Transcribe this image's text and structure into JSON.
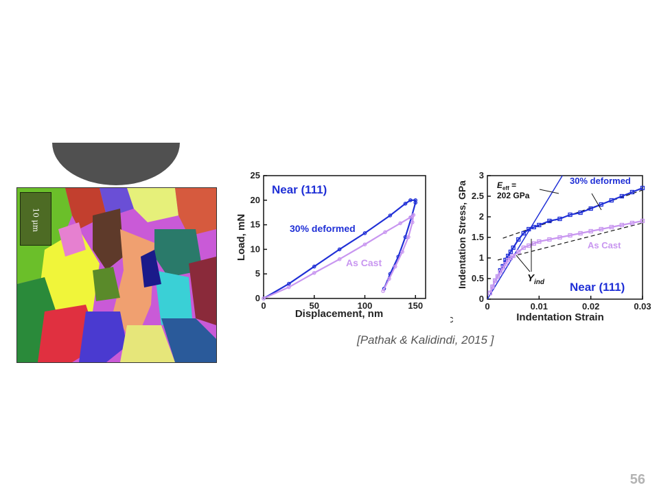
{
  "slide": {
    "citation": "[Pathak & Kalidindi, 2015 ]",
    "page_number": "56"
  },
  "micrograph": {
    "scale_bar_text": "10 μm"
  },
  "colors": {
    "deformed": "#1f2fd6",
    "as_cast": "#c896f0",
    "fit_line": "#111111",
    "modulus_line": "#1f2fd6"
  },
  "chart_data": [
    {
      "type": "line",
      "annotation": "Near (111)",
      "xlabel": "Displacement, nm",
      "ylabel": "Load, mN",
      "xlim": [
        0,
        160
      ],
      "ylim": [
        0,
        25
      ],
      "xticks": [
        0,
        50,
        100,
        150
      ],
      "yticks": [
        0,
        5,
        10,
        15,
        20,
        25
      ],
      "grid": false,
      "series": [
        {
          "name": "30% deformed",
          "color": "#1f2fd6",
          "x": [
            0,
            25,
            50,
            75,
            100,
            125,
            140,
            145,
            150,
            150,
            146,
            140,
            133,
            125,
            119
          ],
          "y": [
            0,
            3.0,
            6.5,
            10.0,
            13.3,
            16.9,
            19.3,
            20.0,
            20.0,
            19.5,
            16.5,
            12.5,
            8.5,
            5.0,
            2.0
          ]
        },
        {
          "name": "As Cast",
          "color": "#c896f0",
          "x": [
            0,
            25,
            50,
            75,
            100,
            120,
            135,
            145,
            148,
            147,
            143,
            137,
            130,
            124,
            118
          ],
          "y": [
            0,
            2.3,
            5.2,
            8.0,
            11.0,
            13.5,
            15.3,
            16.5,
            17.0,
            15.5,
            12.5,
            9.5,
            6.5,
            4.0,
            1.5
          ]
        }
      ]
    },
    {
      "type": "scatter",
      "annotation": "Near (111)",
      "panel_label": "(c",
      "xlabel": "Indentation Strain",
      "ylabel": "Indentation Stress, GPa",
      "xlim": [
        0,
        0.03
      ],
      "ylim": [
        0,
        3
      ],
      "xticks": [
        0,
        0.01,
        0.02,
        0.03
      ],
      "xtick_labels": [
        "0",
        "0.01",
        "0.02",
        "0.03"
      ],
      "yticks": [
        0,
        0.5,
        1,
        1.5,
        2,
        2.5,
        3
      ],
      "ytick_labels": [
        "0",
        "0.5",
        "1",
        "1.5",
        "2",
        "2.5",
        "3"
      ],
      "grid": false,
      "modulus_label": "E",
      "modulus_subscript": "eff",
      "modulus_label_suffix": " =",
      "modulus_value": "202 GPa",
      "yield_label": "Y",
      "yield_subscript": "ind",
      "series": [
        {
          "name": "30% deformed",
          "color": "#1f2fd6",
          "x": [
            0.0005,
            0.001,
            0.0015,
            0.002,
            0.0025,
            0.003,
            0.0035,
            0.004,
            0.0045,
            0.005,
            0.006,
            0.007,
            0.008,
            0.009,
            0.01,
            0.012,
            0.014,
            0.016,
            0.018,
            0.02,
            0.022,
            0.024,
            0.026,
            0.028,
            0.03
          ],
          "y": [
            0.15,
            0.3,
            0.45,
            0.55,
            0.7,
            0.8,
            0.95,
            1.05,
            1.15,
            1.25,
            1.45,
            1.6,
            1.7,
            1.75,
            1.8,
            1.9,
            1.95,
            2.05,
            2.1,
            2.2,
            2.3,
            2.4,
            2.5,
            2.6,
            2.7
          ]
        },
        {
          "name": "As Cast",
          "color": "#c896f0",
          "x": [
            0.0005,
            0.001,
            0.0015,
            0.002,
            0.0025,
            0.003,
            0.0035,
            0.004,
            0.0045,
            0.005,
            0.006,
            0.007,
            0.008,
            0.009,
            0.01,
            0.012,
            0.014,
            0.016,
            0.018,
            0.02,
            0.022,
            0.024,
            0.026,
            0.028,
            0.03
          ],
          "y": [
            0.15,
            0.3,
            0.45,
            0.55,
            0.65,
            0.75,
            0.85,
            0.95,
            1.0,
            1.05,
            1.15,
            1.25,
            1.3,
            1.35,
            1.4,
            1.45,
            1.5,
            1.55,
            1.6,
            1.65,
            1.7,
            1.75,
            1.8,
            1.85,
            1.9
          ]
        }
      ],
      "modulus_line": {
        "x": [
          0,
          0.0145
        ],
        "y": [
          0,
          3.0
        ]
      },
      "fit_lines": [
        {
          "x": [
            0.003,
            0.03
          ],
          "y": [
            1.48,
            2.65
          ]
        },
        {
          "x": [
            0.002,
            0.03
          ],
          "y": [
            0.95,
            1.85
          ]
        }
      ]
    }
  ]
}
